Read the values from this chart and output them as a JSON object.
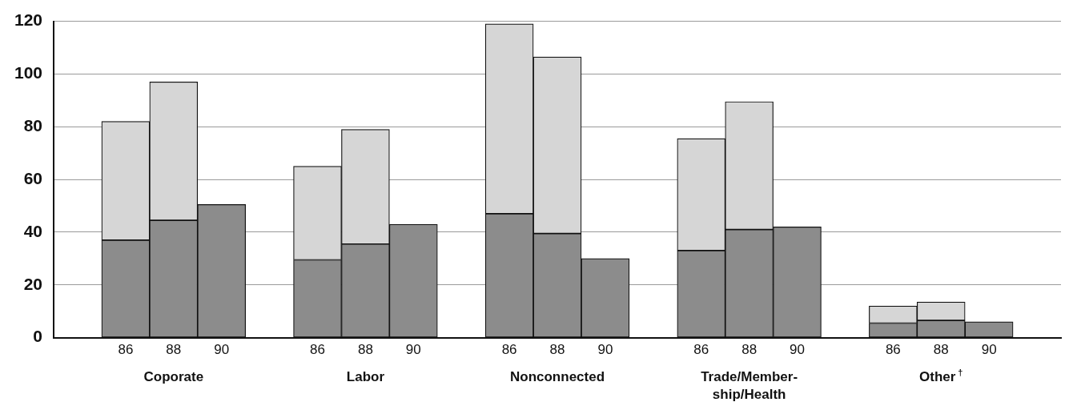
{
  "chart_data": {
    "type": "bar",
    "stacked": true,
    "categories": [
      null,
      "86",
      "88",
      "90",
      null,
      "86",
      "88",
      "90",
      null,
      "86",
      "88",
      "90",
      null,
      "86",
      "88",
      "90",
      null,
      "86",
      "88",
      "90",
      null
    ],
    "series": [
      {
        "color": "#8c8c8c",
        "values": [
          null,
          37,
          44.5,
          50.5,
          null,
          29.5,
          35.5,
          43,
          null,
          47,
          39.5,
          30,
          null,
          33,
          41,
          42,
          null,
          5.5,
          6.5,
          6,
          null
        ]
      },
      {
        "color": "#d6d6d6",
        "values": [
          null,
          45,
          52.5,
          null,
          null,
          35.5,
          43.5,
          null,
          null,
          72,
          67,
          null,
          null,
          42.5,
          48.5,
          null,
          null,
          6.5,
          7,
          null,
          null
        ]
      }
    ],
    "ylim": [
      0,
      120
    ],
    "yticks": [
      0,
      20,
      40,
      60,
      80,
      100,
      120
    ],
    "grid": "y",
    "annotations": [
      "Coporate",
      "Labor",
      "Nonconnected",
      "Trade/Member-ship/Health",
      "Other$^{†}$"
    ]
  }
}
